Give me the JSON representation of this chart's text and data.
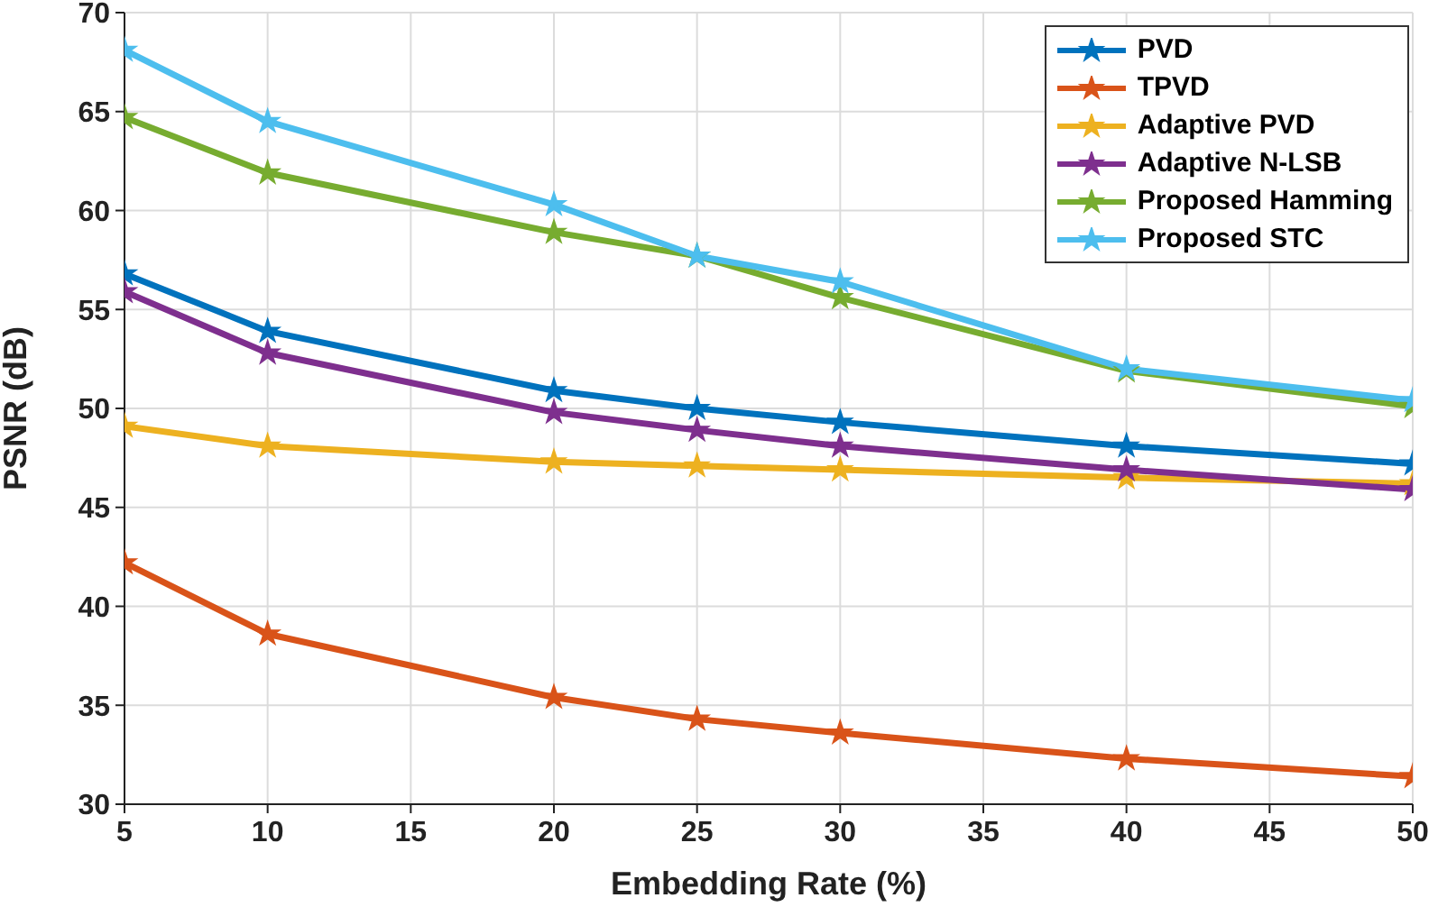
{
  "chart_data": {
    "type": "line",
    "xlabel": "Embedding Rate (%)",
    "ylabel": "PSNR (dB)",
    "x": [
      5,
      10,
      20,
      25,
      30,
      40,
      50
    ],
    "xlim": [
      5,
      50
    ],
    "xticks": [
      5,
      10,
      15,
      20,
      25,
      30,
      35,
      40,
      45,
      50
    ],
    "ylim": [
      30,
      70
    ],
    "yticks": [
      30,
      35,
      40,
      45,
      50,
      55,
      60,
      65,
      70
    ],
    "grid": true,
    "legend": "top right",
    "marker": "star",
    "line_style": "solid",
    "series": [
      {
        "name": "PVD",
        "color": "#0072bd",
        "values": [
          56.8,
          53.9,
          50.9,
          50.0,
          49.3,
          48.1,
          47.2
        ]
      },
      {
        "name": "TPVD",
        "color": "#d95319",
        "values": [
          42.2,
          38.6,
          35.4,
          34.3,
          33.6,
          32.3,
          31.4
        ]
      },
      {
        "name": "Adaptive PVD",
        "color": "#edb120",
        "values": [
          49.1,
          48.1,
          47.3,
          47.1,
          46.9,
          46.5,
          46.2
        ]
      },
      {
        "name": "Adaptive N-LSB",
        "color": "#7e2f8e",
        "values": [
          55.9,
          52.8,
          49.8,
          48.9,
          48.1,
          46.9,
          45.9
        ]
      },
      {
        "name": "Proposed Hamming",
        "color": "#77ac30",
        "values": [
          64.7,
          61.9,
          58.9,
          57.7,
          55.6,
          51.9,
          50.1
        ]
      },
      {
        "name": "Proposed STC",
        "color": "#4dbeee",
        "values": [
          68.1,
          64.5,
          60.3,
          57.7,
          56.4,
          52.0,
          50.4
        ]
      }
    ]
  }
}
